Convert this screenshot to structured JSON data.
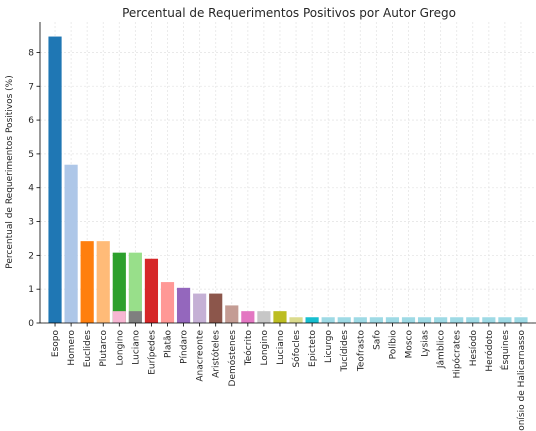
{
  "chart_data": {
    "type": "bar",
    "title": "Percentual de Requerimentos Positivos por Autor Grego",
    "xlabel": "",
    "ylabel": "Percentual de Requerimentos Positivos (%)",
    "ylim": [
      0,
      8.9
    ],
    "yticks": [
      0,
      1,
      2,
      3,
      4,
      5,
      6,
      7,
      8
    ],
    "grid": true,
    "categories": [
      "Esopo",
      "Homero",
      "Euclides",
      "Plutarco",
      "Longino",
      "Luciano",
      "Eurípedes",
      "Platão",
      "Píndaro",
      "Anacreonte",
      "Aristóteles",
      "Demóstenes",
      "Teócrito",
      "Longino",
      "Luciano",
      "Sófocles",
      "Epicteto",
      "Licurgo",
      "Tucídides",
      "Teofrasto",
      "Safo",
      "Políbio",
      "Mosco",
      "Lysias",
      "Jâmblico",
      "Hipócrates",
      "Hesíodo",
      "Heródoto",
      "Ésquines",
      "Dionísio de Halicarnasso"
    ],
    "values": [
      8.47,
      4.68,
      2.42,
      2.42,
      2.08,
      2.08,
      1.9,
      1.21,
      1.04,
      0.87,
      0.87,
      0.52,
      0.35,
      0.35,
      0.35,
      0.17,
      0.17,
      0.17,
      0.17,
      0.17,
      0.17,
      0.17,
      0.17,
      0.17,
      0.17,
      0.17,
      0.17,
      0.17,
      0.17,
      0.17
    ],
    "colors": [
      "#1f77b4",
      "#aec7e8",
      "#ff7f0e",
      "#ffbb78",
      "#2ca02c",
      "#98df8a",
      "#d62728",
      "#ff9896",
      "#9467bd",
      "#c5b0d5",
      "#8c564b",
      "#c49c94",
      "#e377c2",
      "#c7c7c7",
      "#bcbd22",
      "#dbdb8d",
      "#17becf",
      "#9edae5",
      "#9edae5",
      "#9edae5",
      "#9edae5",
      "#9edae5",
      "#9edae5",
      "#9edae5",
      "#9edae5",
      "#9edae5",
      "#9edae5",
      "#9edae5",
      "#9edae5",
      "#9edae5"
    ],
    "overlay_bars": [
      {
        "index": 4,
        "value": 0.35,
        "color": "#f7b6d2"
      },
      {
        "index": 5,
        "value": 0.35,
        "color": "#7f7f7f"
      }
    ]
  }
}
